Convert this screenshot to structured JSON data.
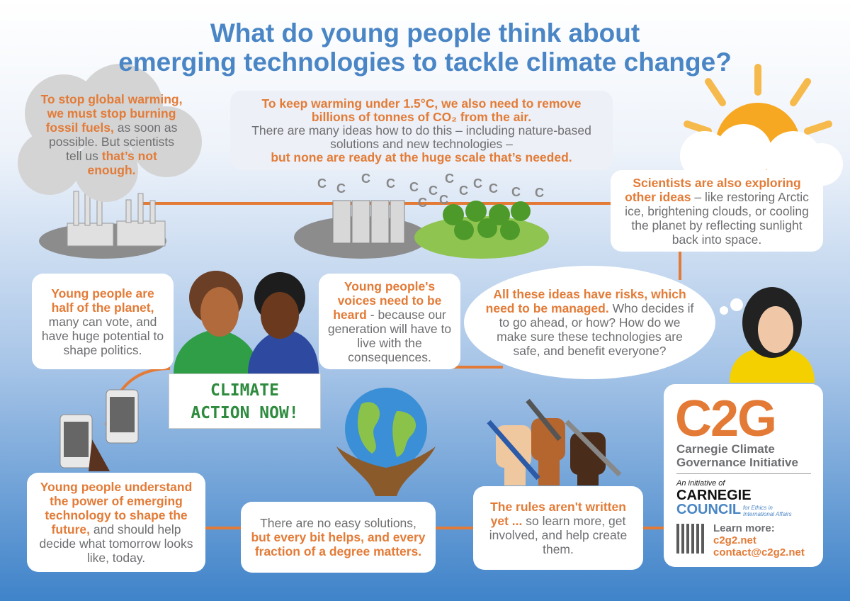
{
  "title": {
    "line1": "What do young people think about",
    "line2": "emerging technologies to tackle climate change?"
  },
  "carbon_symbol": "C",
  "fossil_fuels": {
    "highlight_1": "To stop global warming, we must stop burning fossil fuels,",
    "text": "as soon as possible. But scientists tell us",
    "highlight_2": "that’s not enough."
  },
  "carbon_removal": {
    "highlight": "To keep warming under 1.5°C, we also need to remove billions of tonnes of CO₂ from the air.",
    "text": "There are many ideas how to do this – including nature-based solutions and new technologies –",
    "emphasis": "but none are ready at the huge scale that’s needed."
  },
  "other_ideas": {
    "highlight": "Scientists are also exploring other ideas",
    "text": "– like restoring Arctic ice, brightening clouds, or cooling the planet by reflecting sunlight back into space."
  },
  "half_of_planet": {
    "highlight": "Young people are half of the planet,",
    "text": "many can vote, and have huge potential to shape politics."
  },
  "voices": {
    "highlight": "Young people's voices need to be heard",
    "text": "- because our generation will have to live with the consequences."
  },
  "risks": {
    "highlight": "All these ideas have risks, which need to be managed.",
    "text": "Who decides if to go ahead, or how? How do we make sure these technologies are safe, and benefit everyone?"
  },
  "sign": {
    "line1": "CLIMATE",
    "line2": "ACTION NOW!"
  },
  "technology": {
    "highlight": "Young people understand the power of emerging technology to shape the future,",
    "text": "and should help decide what tomorrow looks like, today."
  },
  "solutions": {
    "text": "There are no easy solutions,",
    "highlight": "but every bit helps, and every fraction of a degree matters."
  },
  "rules": {
    "highlight": "The rules aren't written yet ...",
    "text": "so learn more, get involved, and help create them."
  },
  "logo": {
    "mark": "C2G",
    "name_line1": "Carnegie Climate",
    "name_line2": "Governance Initiative",
    "initiative": "An initiative of",
    "council_1": "CARNEGIE",
    "council_2": "COUNCIL",
    "council_tagline_1": "for Ethics in",
    "council_tagline_2": "International Affairs",
    "learn_more": "Learn more:",
    "website": "c2g2.net",
    "email": "contact@c2g2.net"
  }
}
